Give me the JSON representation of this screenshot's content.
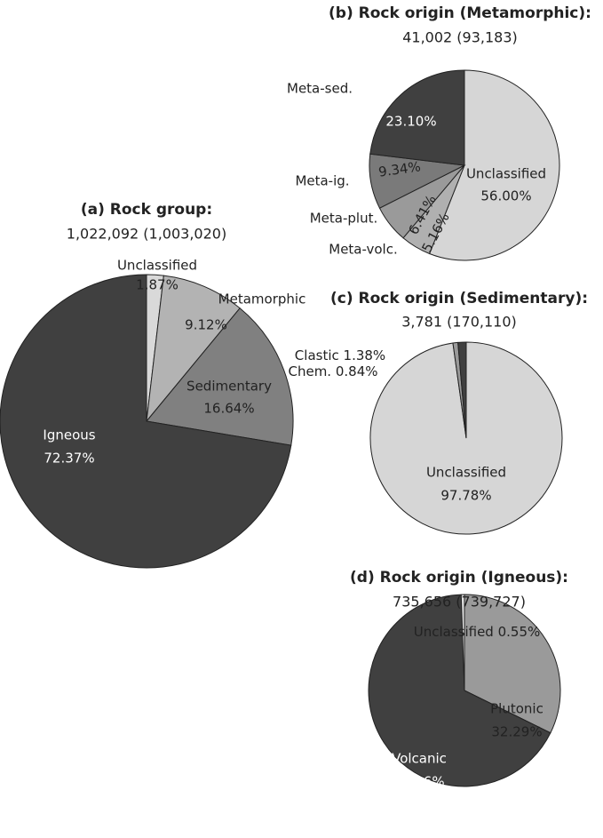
{
  "chart_data": [
    {
      "type": "pie",
      "title": "(a) Rock group:",
      "subtitle": "1,022,092 (1,003,020)",
      "categories": [
        "Unclassified",
        "Metamorphic",
        "Sedimentary",
        "Igneous"
      ],
      "values": [
        1.87,
        9.12,
        16.64,
        72.37
      ],
      "value_labels": [
        "1.87%",
        "9.12%",
        "16.64%",
        "72.37%"
      ],
      "colors": [
        "#d9d9d9",
        "#b3b3b3",
        "#808080",
        "#404040"
      ]
    },
    {
      "type": "pie",
      "title": "(b) Rock origin (Metamorphic):",
      "subtitle": "41,002 (93,183)",
      "categories": [
        "Unclassified",
        "Meta-volc.",
        "Meta-plut.",
        "Meta-ig.",
        "Meta-sed."
      ],
      "values": [
        56.0,
        5.16,
        6.41,
        9.34,
        23.1
      ],
      "value_labels": [
        "56.00%",
        "5.16%",
        "6.41%",
        "9.34%",
        "23.10%"
      ],
      "colors": [
        "#d6d6d6",
        "#b0b0b0",
        "#9a9a9a",
        "#7a7a7a",
        "#404040"
      ]
    },
    {
      "type": "pie",
      "title": "(c) Rock origin (Sedimentary):",
      "subtitle": "3,781 (170,110)",
      "categories": [
        "Unclassified",
        "Chem.",
        "Clastic"
      ],
      "values": [
        97.78,
        0.84,
        1.38
      ],
      "value_labels": [
        "97.78%",
        "0.84%",
        "1.38%"
      ],
      "colors": [
        "#d6d6d6",
        "#9a9a9a",
        "#404040"
      ]
    },
    {
      "type": "pie",
      "title": "(d) Rock origin (Igneous):",
      "subtitle": "735,656 (739,727)",
      "categories": [
        "Plutonic",
        "Volcanic",
        "Unclassified"
      ],
      "values": [
        32.29,
        67.16,
        0.55
      ],
      "value_labels": [
        "32.29%",
        "67.16%",
        "0.55%"
      ],
      "colors": [
        "#9a9a9a",
        "#404040",
        "#e0e0e0"
      ]
    }
  ]
}
